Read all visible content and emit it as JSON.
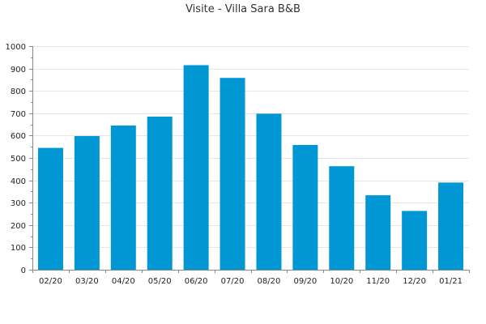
{
  "chart_data": {
    "type": "bar",
    "title": "Visite - Villa Sara B&B",
    "xlabel": "",
    "ylabel": "",
    "categories": [
      "02/20",
      "03/20",
      "04/20",
      "05/20",
      "06/20",
      "07/20",
      "08/20",
      "09/20",
      "10/20",
      "11/20",
      "12/20",
      "01/21"
    ],
    "values": [
      545,
      598,
      645,
      685,
      915,
      858,
      698,
      558,
      463,
      333,
      263,
      390
    ],
    "ylim": [
      0,
      1000
    ],
    "yticks": [
      0,
      100,
      200,
      300,
      400,
      500,
      600,
      700,
      800,
      900,
      1000
    ],
    "grid": true,
    "bar_color": "#0097d4",
    "grid_color": "#e6e6e6",
    "axis_color": "#888888"
  }
}
